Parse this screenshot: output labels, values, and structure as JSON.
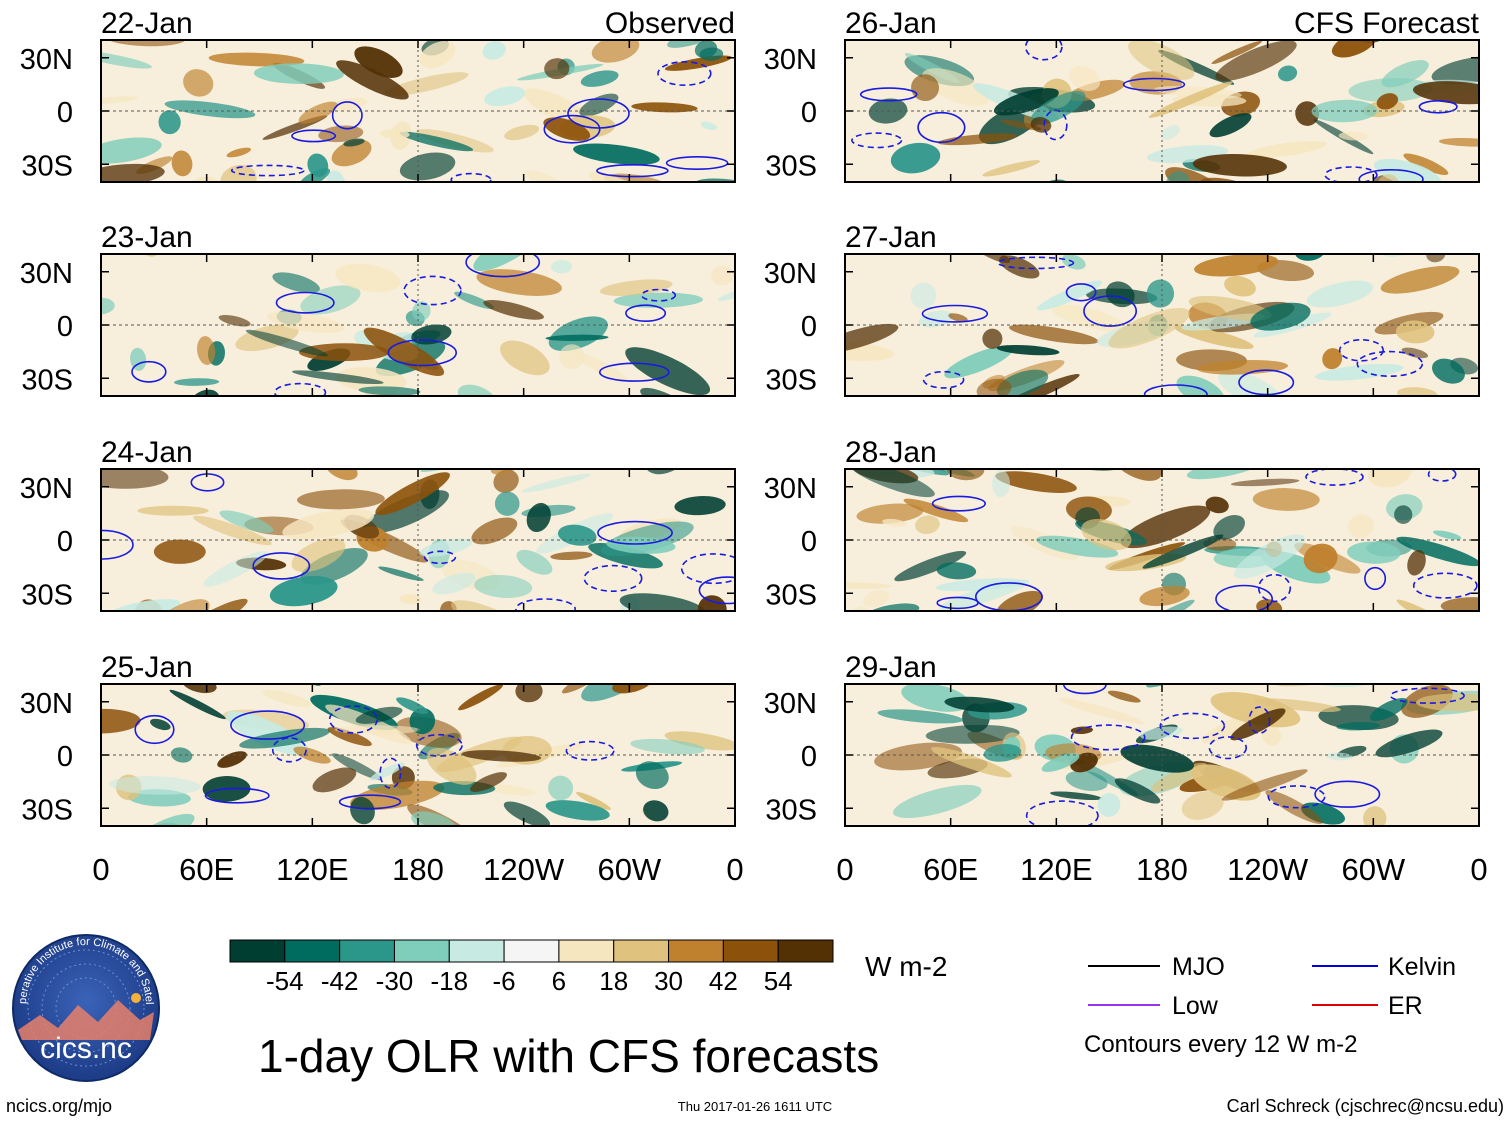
{
  "chart_data": {
    "type": "heatmap",
    "title": "1-day OLR with CFS forecasts",
    "variable": "OLR anomaly",
    "units": "W m-2",
    "column_titles": [
      "Observed",
      "CFS Forecast"
    ],
    "x_ticks": [
      "0",
      "60E",
      "120E",
      "180",
      "120W",
      "60W",
      "0"
    ],
    "y_ticks": [
      "30N",
      "0",
      "30S"
    ],
    "xlim": [
      0,
      360
    ],
    "ylim": [
      -40,
      40
    ],
    "panels": [
      {
        "column": "Observed",
        "date": "22-Jan"
      },
      {
        "column": "Observed",
        "date": "23-Jan"
      },
      {
        "column": "Observed",
        "date": "24-Jan"
      },
      {
        "column": "Observed",
        "date": "25-Jan"
      },
      {
        "column": "CFS Forecast",
        "date": "26-Jan"
      },
      {
        "column": "CFS Forecast",
        "date": "27-Jan"
      },
      {
        "column": "CFS Forecast",
        "date": "28-Jan"
      },
      {
        "column": "CFS Forecast",
        "date": "29-Jan"
      }
    ],
    "colorbar": {
      "colors": [
        "#003e32",
        "#006c5f",
        "#2b968a",
        "#7fcdbb",
        "#c7eae3",
        "#f5f5f5",
        "#f6e6c0",
        "#dfc27d",
        "#bf812d",
        "#8c510a",
        "#543005"
      ],
      "labels": [
        "-54",
        "-42",
        "-30",
        "-18",
        "-6",
        "6",
        "18",
        "30",
        "42",
        "54"
      ],
      "units": "W m-2"
    },
    "legend": [
      {
        "label": "MJO",
        "color": "#000000"
      },
      {
        "label": "Kelvin",
        "color": "#0000dd"
      },
      {
        "label": "Low",
        "color": "#9933ee"
      },
      {
        "label": "ER",
        "color": "#dd0000"
      }
    ],
    "contour_note": "Contours every 12 W m-2"
  },
  "footer": {
    "logo_text": "cics.nc",
    "logo_ring_text": "Cooperative Institute for Climate and Satellites",
    "left": "ncics.org/mjo",
    "center": "Thu 2017-01-26 1611 UTC",
    "right": "Carl Schreck (cjschrec@ncsu.edu)"
  }
}
